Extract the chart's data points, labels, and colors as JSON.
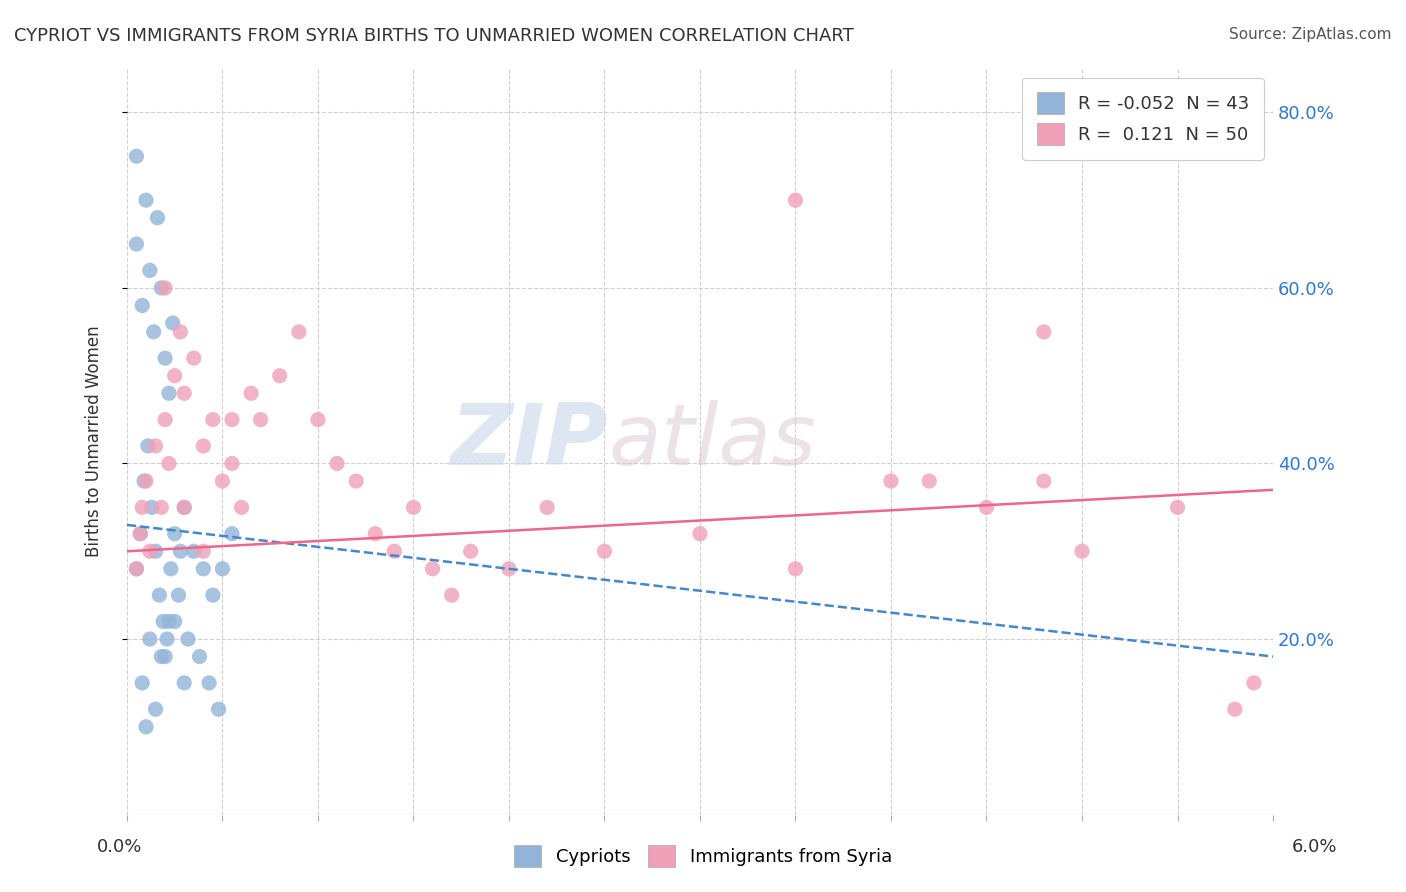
{
  "title": "CYPRIOT VS IMMIGRANTS FROM SYRIA BIRTHS TO UNMARRIED WOMEN CORRELATION CHART",
  "source": "Source: ZipAtlas.com",
  "ylabel": "Births to Unmarried Women",
  "xlim": [
    0.0,
    6.0
  ],
  "ylim": [
    0.0,
    85.0
  ],
  "ytick_values": [
    20.0,
    40.0,
    60.0,
    80.0
  ],
  "watermark_zip": "ZIP",
  "watermark_atlas": "atlas",
  "cypriot_color": "#92b4d8",
  "syria_color": "#f0a0b8",
  "cypriot_trend_color": "#4488cc",
  "syria_trend_color": "#ee6688",
  "background_color": "#ffffff",
  "grid_color": "#d0d0d0",
  "cypriot_x": [
    0.05,
    0.08,
    0.1,
    0.12,
    0.14,
    0.16,
    0.18,
    0.2,
    0.22,
    0.24,
    0.05,
    0.07,
    0.09,
    0.11,
    0.13,
    0.15,
    0.17,
    0.19,
    0.21,
    0.23,
    0.25,
    0.28,
    0.3,
    0.35,
    0.4,
    0.45,
    0.5,
    0.55,
    0.3,
    0.2,
    0.25,
    0.1,
    0.15,
    0.08,
    0.12,
    0.18,
    0.22,
    0.27,
    0.32,
    0.38,
    0.43,
    0.48,
    0.05
  ],
  "cypriot_y": [
    65,
    58,
    70,
    62,
    55,
    68,
    60,
    52,
    48,
    56,
    28,
    32,
    38,
    42,
    35,
    30,
    25,
    22,
    20,
    28,
    32,
    30,
    35,
    30,
    28,
    25,
    28,
    32,
    15,
    18,
    22,
    10,
    12,
    15,
    20,
    18,
    22,
    25,
    20,
    18,
    15,
    12,
    75
  ],
  "syria_x": [
    0.05,
    0.07,
    0.08,
    0.1,
    0.12,
    0.15,
    0.18,
    0.2,
    0.22,
    0.25,
    0.28,
    0.3,
    0.35,
    0.4,
    0.45,
    0.5,
    0.55,
    0.6,
    0.65,
    0.7,
    0.8,
    0.9,
    1.0,
    1.1,
    1.2,
    1.3,
    1.4,
    1.5,
    1.6,
    1.7,
    1.8,
    2.0,
    2.2,
    2.5,
    3.0,
    3.5,
    4.0,
    4.5,
    4.8,
    5.0,
    5.5,
    5.8,
    5.9,
    3.5,
    4.2,
    4.8,
    0.2,
    0.3,
    0.4,
    0.55
  ],
  "syria_y": [
    28,
    32,
    35,
    38,
    30,
    42,
    35,
    45,
    40,
    50,
    55,
    48,
    52,
    42,
    45,
    38,
    40,
    35,
    48,
    45,
    50,
    55,
    45,
    40,
    38,
    32,
    30,
    35,
    28,
    25,
    30,
    28,
    35,
    30,
    32,
    28,
    38,
    35,
    38,
    30,
    35,
    12,
    15,
    70,
    38,
    55,
    60,
    35,
    30,
    45
  ],
  "trend_cypriot_x0": 0.0,
  "trend_cypriot_y0": 33.0,
  "trend_cypriot_x1": 6.0,
  "trend_cypriot_y1": 18.0,
  "trend_syria_x0": 0.0,
  "trend_syria_y0": 30.0,
  "trend_syria_x1": 6.0,
  "trend_syria_y1": 37.0
}
